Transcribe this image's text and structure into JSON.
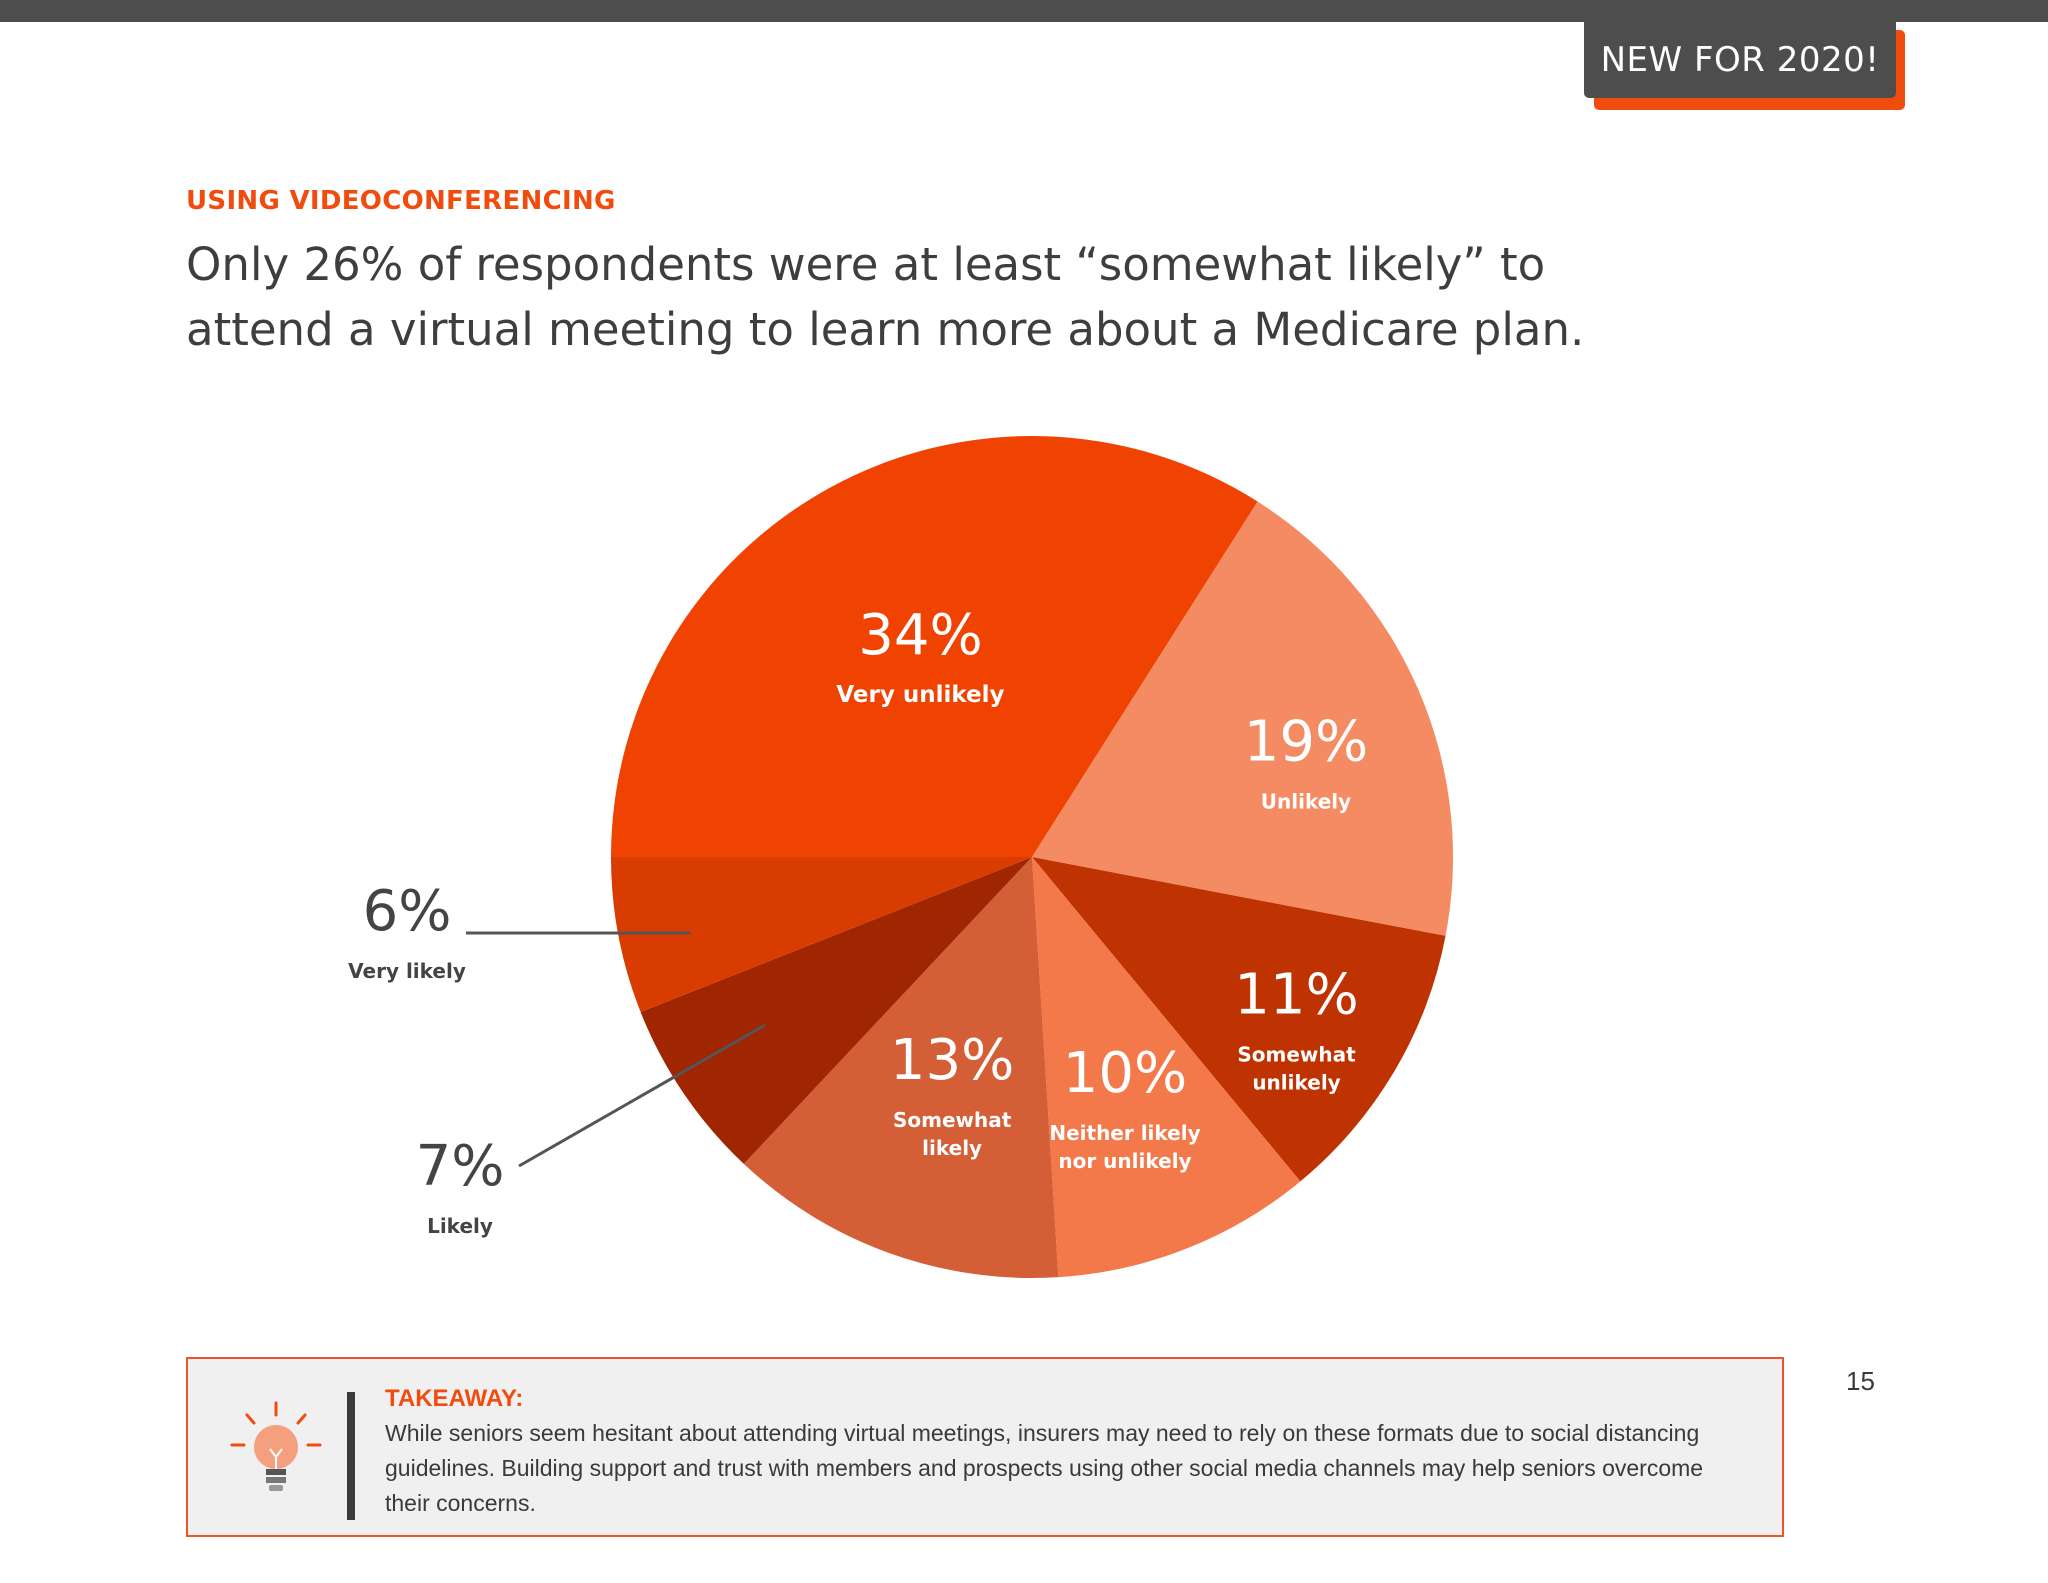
{
  "badge": {
    "label": "NEW FOR 2020!"
  },
  "header": {
    "section_label": "USING VIDEOCONFERENCING",
    "headline": "Only 26% of respondents were at least “somewhat likely” to attend a virtual meeting to learn more about a Medicare plan."
  },
  "chart_data": {
    "type": "pie",
    "slices": [
      {
        "label": "Very unlikely",
        "value": 34,
        "display": "34%",
        "color": "#f04301"
      },
      {
        "label": "Unlikely",
        "value": 19,
        "display": "19%",
        "color": "#f48b63"
      },
      {
        "label": "Somewhat unlikely",
        "value": 11,
        "display": "11%",
        "color": "#bf3201"
      },
      {
        "label": "Neither likely nor unlikely",
        "value": 10,
        "display": "10%",
        "color": "#f3784a"
      },
      {
        "label": "Somewhat likely",
        "value": 13,
        "display": "13%",
        "color": "#d45e36"
      },
      {
        "label": "Likely",
        "value": 7,
        "display": "7%",
        "color": "#a02601"
      },
      {
        "label": "Very likely",
        "value": 6,
        "display": "6%",
        "color": "#d93c01"
      }
    ],
    "start_angle_deg": 180,
    "direction": "clockwise",
    "slice_text_color": "#ffffff",
    "outside_text_color": "#444444",
    "leader_line_color": "#555555"
  },
  "takeaway": {
    "title": "TAKEAWAY:",
    "text": "While seniors seem hesitant about attending virtual meetings, insurers may need to rely on these formats due to social distancing guidelines. Building support and trust with members and prospects using other social media channels may help seniors overcome their concerns.",
    "icon": "lightbulb-icon"
  },
  "page": {
    "number": "15"
  }
}
